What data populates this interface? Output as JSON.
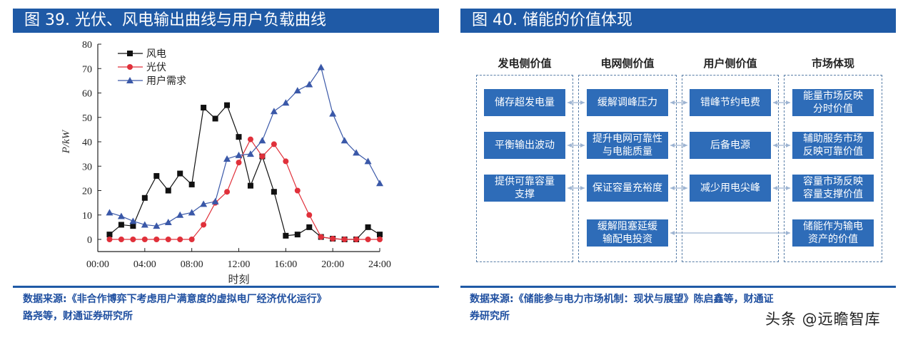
{
  "left": {
    "title": "图 39. 光伏、风电输出曲线与用户负载曲线",
    "source_line1": "数据来源:《非合作博弈下考虑用户满意度的虚拟电厂经济优化运行》",
    "source_line2": "路尧等，财通证券研究所"
  },
  "right": {
    "title": "图 40. 储能的价值体现",
    "source_line1": "数据来源:《储能参与电力市场机制：现状与展望》陈启鑫等，财通证",
    "source_line2": "券研究所",
    "columns": [
      {
        "header": "发电侧价值",
        "items": [
          "储存超发电量",
          "平衡输出波动",
          "提供可靠容量\n支撑"
        ]
      },
      {
        "header": "电网侧价值",
        "items": [
          "缓解调峰压力",
          "提升电网可靠性\n与电能质量",
          "保证容量充裕度",
          "缓解阻塞延缓\n输配电投资"
        ]
      },
      {
        "header": "用户侧价值",
        "items": [
          "错峰节约电费",
          "后备电源",
          "减少用电尖峰"
        ]
      },
      {
        "header": "市场体现",
        "items": [
          "能量市场反映\n分时价值",
          "辅助服务市场\n反映可靠价值",
          "容量市场反映\n容量支撑价值",
          "储能作为输电\n资产的价值"
        ]
      }
    ]
  },
  "watermark": "头条 @远瞻智库",
  "chart_data": {
    "type": "line",
    "title": "",
    "xlabel": "时刻",
    "ylabel": "P/kW",
    "x": [
      1,
      2,
      3,
      4,
      5,
      6,
      7,
      8,
      9,
      10,
      11,
      12,
      13,
      14,
      15,
      16,
      17,
      18,
      19,
      20,
      21,
      22,
      23,
      24
    ],
    "x_ticks": [
      "00:00",
      "04:00",
      "08:00",
      "12:00",
      "16:00",
      "20:00",
      "24:00"
    ],
    "x_tick_hours": [
      0,
      4,
      8,
      12,
      16,
      20,
      24
    ],
    "y_ticks": [
      0,
      10,
      20,
      30,
      40,
      50,
      60,
      70,
      80
    ],
    "ylim": [
      -5,
      80
    ],
    "xlim": [
      0,
      24
    ],
    "grid": false,
    "legend_position": "top-left",
    "series": [
      {
        "name": "风电",
        "color": "#111111",
        "marker": "square",
        "values": [
          2,
          6,
          5.5,
          17,
          26,
          20,
          27,
          22.5,
          54,
          49.5,
          55,
          42,
          22,
          34,
          19.5,
          1.5,
          2,
          5,
          1,
          0.3,
          0,
          0,
          5,
          2
        ]
      },
      {
        "name": "光伏",
        "color": "#e0303a",
        "marker": "circle",
        "values": [
          0,
          0,
          0,
          0,
          0,
          0,
          0,
          0,
          6,
          15,
          19.5,
          31.5,
          41,
          34,
          39,
          32,
          20,
          10,
          1,
          0.3,
          0,
          0,
          0,
          0
        ]
      },
      {
        "name": "用户需求",
        "color": "#3a58a8",
        "marker": "triangle",
        "values": [
          11,
          9.5,
          7.5,
          6,
          5.5,
          7,
          10,
          11,
          14.5,
          15.5,
          33,
          34.5,
          35,
          40.5,
          52.5,
          56,
          61,
          63.5,
          70.5,
          51.5,
          40.5,
          35.5,
          32,
          23
        ]
      }
    ]
  }
}
